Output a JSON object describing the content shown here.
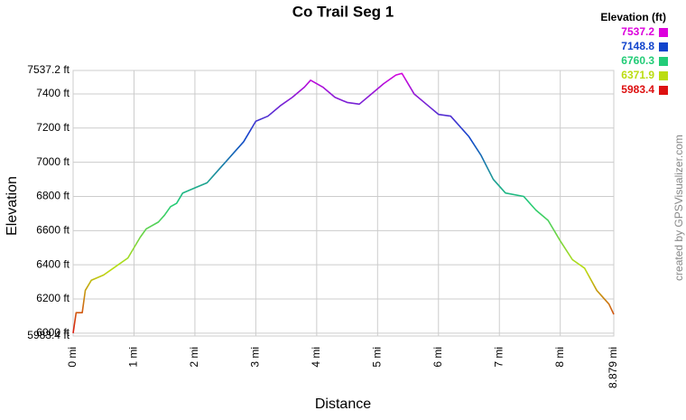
{
  "chart_data": {
    "type": "line",
    "title": "Co Trail Seg 1",
    "x_label": "Distance",
    "y_label": "Elevation",
    "credit": "created by GPSVisualizer.com",
    "x": [
      0,
      0.05,
      0.15,
      0.2,
      0.3,
      0.5,
      0.7,
      0.9,
      1.0,
      1.1,
      1.2,
      1.4,
      1.5,
      1.6,
      1.7,
      1.8,
      2.0,
      2.2,
      2.4,
      2.6,
      2.8,
      3.0,
      3.2,
      3.4,
      3.6,
      3.8,
      3.9,
      4.1,
      4.3,
      4.5,
      4.7,
      4.9,
      5.1,
      5.3,
      5.4,
      5.6,
      5.8,
      6.0,
      6.2,
      6.5,
      6.7,
      6.9,
      7.1,
      7.4,
      7.6,
      7.8,
      8.0,
      8.2,
      8.4,
      8.6,
      8.8,
      8.879
    ],
    "series": [
      {
        "name": "Elevation",
        "values": [
          6000,
          6120,
          6120,
          6250,
          6310,
          6340,
          6390,
          6440,
          6500,
          6560,
          6610,
          6650,
          6690,
          6740,
          6760,
          6820,
          6850,
          6880,
          6960,
          7040,
          7120,
          7240,
          7270,
          7330,
          7380,
          7440,
          7480,
          7440,
          7380,
          7350,
          7340,
          7400,
          7460,
          7510,
          7520,
          7400,
          7340,
          7280,
          7270,
          7150,
          7040,
          6900,
          6820,
          6800,
          6720,
          6660,
          6540,
          6430,
          6380,
          6250,
          6170,
          6110
        ]
      }
    ],
    "xlim": [
      0,
      8.879
    ],
    "ylim": [
      5983.4,
      7537.2
    ],
    "xticks": [
      {
        "value": 0,
        "label": "0 mi"
      },
      {
        "value": 1,
        "label": "1 mi"
      },
      {
        "value": 2,
        "label": "2 mi"
      },
      {
        "value": 3,
        "label": "3 mi"
      },
      {
        "value": 4,
        "label": "4 mi"
      },
      {
        "value": 5,
        "label": "5 mi"
      },
      {
        "value": 6,
        "label": "6 mi"
      },
      {
        "value": 7,
        "label": "7 mi"
      },
      {
        "value": 8,
        "label": "8 mi"
      },
      {
        "value": 8.879,
        "label": "8.879 mi"
      }
    ],
    "yticks": [
      {
        "value": 5983.4,
        "label": "5983.4 ft"
      },
      {
        "value": 6000,
        "label": "6000 ft"
      },
      {
        "value": 6200,
        "label": "6200 ft"
      },
      {
        "value": 6400,
        "label": "6400 ft"
      },
      {
        "value": 6600,
        "label": "6600 ft"
      },
      {
        "value": 6800,
        "label": "6800 ft"
      },
      {
        "value": 7000,
        "label": "7000 ft"
      },
      {
        "value": 7200,
        "label": "7200 ft"
      },
      {
        "value": 7400,
        "label": "7400 ft"
      },
      {
        "value": 7537.2,
        "label": "7537.2 ft"
      }
    ],
    "grid": true,
    "legend": {
      "title": "Elevation (ft)",
      "stops": [
        {
          "value": 7537.2,
          "color": "#dd00dd"
        },
        {
          "value": 7148.8,
          "color": "#1144cc"
        },
        {
          "value": 6760.3,
          "color": "#22cc77"
        },
        {
          "value": 6371.9,
          "color": "#bbdd11"
        },
        {
          "value": 5983.4,
          "color": "#dd1111"
        }
      ]
    }
  }
}
